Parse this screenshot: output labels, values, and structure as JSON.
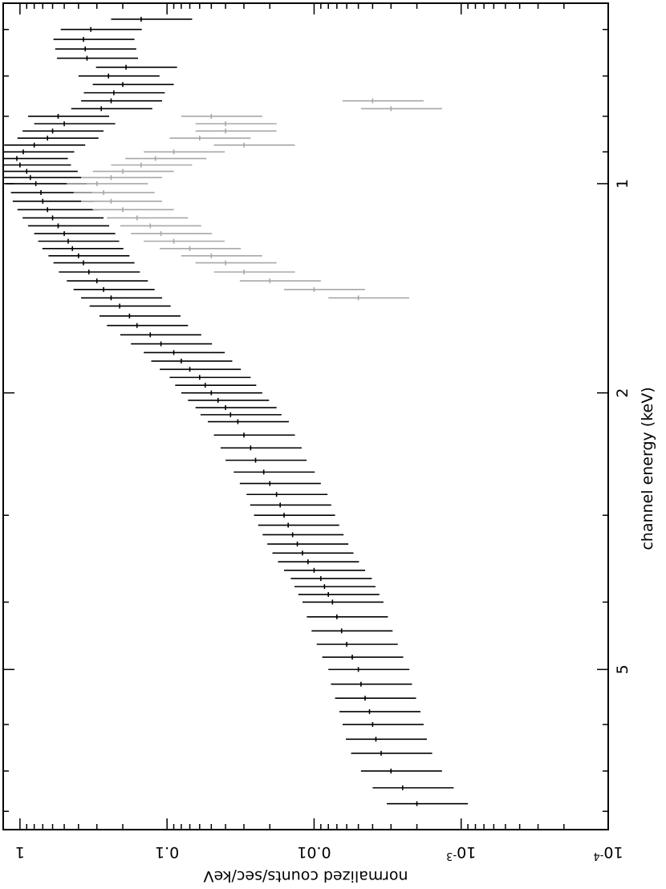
{
  "chart_data": {
    "type": "scatter",
    "orientation": "rotated 90 degrees clockwise (energy axis runs top-to-bottom)",
    "title": "",
    "xlabel": "channel energy (keV)",
    "ylabel": "normalized counts/sec/keV",
    "xscale": "log",
    "yscale": "log",
    "xlim": [
      0.55,
      8.5
    ],
    "ylim": [
      0.0001,
      1.3
    ],
    "x_major_ticks": [
      "1",
      "2",
      "5"
    ],
    "y_tick_labels": [
      "1",
      "0.1",
      "0.01",
      "10^-3",
      "10^-4"
    ],
    "y_tick_values": [
      1,
      0.1,
      0.01,
      0.001,
      0.0001
    ],
    "series": [
      {
        "name": "black spectrum",
        "color": "#000000",
        "points": [
          [
            0.58,
            0.15
          ],
          [
            0.6,
            0.33
          ],
          [
            0.62,
            0.37
          ],
          [
            0.64,
            0.36
          ],
          [
            0.66,
            0.35
          ],
          [
            0.68,
            0.19
          ],
          [
            0.7,
            0.25
          ],
          [
            0.72,
            0.2
          ],
          [
            0.74,
            0.23
          ],
          [
            0.76,
            0.24
          ],
          [
            0.78,
            0.28
          ],
          [
            0.8,
            0.55
          ],
          [
            0.82,
            0.5
          ],
          [
            0.84,
            0.6
          ],
          [
            0.86,
            0.65
          ],
          [
            0.88,
            0.8
          ],
          [
            0.9,
            0.95
          ],
          [
            0.92,
            1.05
          ],
          [
            0.94,
            1.0
          ],
          [
            0.96,
            0.9
          ],
          [
            0.98,
            0.85
          ],
          [
            1.0,
            0.78
          ],
          [
            1.03,
            0.72
          ],
          [
            1.06,
            0.7
          ],
          [
            1.09,
            0.65
          ],
          [
            1.12,
            0.6
          ],
          [
            1.15,
            0.55
          ],
          [
            1.18,
            0.5
          ],
          [
            1.21,
            0.47
          ],
          [
            1.24,
            0.44
          ],
          [
            1.27,
            0.4
          ],
          [
            1.3,
            0.37
          ],
          [
            1.34,
            0.34
          ],
          [
            1.38,
            0.3
          ],
          [
            1.42,
            0.27
          ],
          [
            1.46,
            0.24
          ],
          [
            1.5,
            0.21
          ],
          [
            1.55,
            0.18
          ],
          [
            1.6,
            0.16
          ],
          [
            1.65,
            0.13
          ],
          [
            1.7,
            0.11
          ],
          [
            1.75,
            0.09
          ],
          [
            1.8,
            0.08
          ],
          [
            1.85,
            0.07
          ],
          [
            1.9,
            0.06
          ],
          [
            1.95,
            0.055
          ],
          [
            2.0,
            0.05
          ],
          [
            2.05,
            0.045
          ],
          [
            2.1,
            0.04
          ],
          [
            2.15,
            0.037
          ],
          [
            2.2,
            0.033
          ],
          [
            2.3,
            0.03
          ],
          [
            2.4,
            0.027
          ],
          [
            2.5,
            0.025
          ],
          [
            2.6,
            0.022
          ],
          [
            2.7,
            0.02
          ],
          [
            2.8,
            0.018
          ],
          [
            2.9,
            0.017
          ],
          [
            3.0,
            0.016
          ],
          [
            3.1,
            0.015
          ],
          [
            3.2,
            0.014
          ],
          [
            3.3,
            0.013
          ],
          [
            3.4,
            0.012
          ],
          [
            3.5,
            0.011
          ],
          [
            3.6,
            0.01
          ],
          [
            3.7,
            0.009
          ],
          [
            3.8,
            0.0085
          ],
          [
            3.9,
            0.008
          ],
          [
            4.0,
            0.0075
          ],
          [
            4.2,
            0.007
          ],
          [
            4.4,
            0.0065
          ],
          [
            4.6,
            0.006
          ],
          [
            4.8,
            0.0055
          ],
          [
            5.0,
            0.005
          ],
          [
            5.25,
            0.0048
          ],
          [
            5.5,
            0.0045
          ],
          [
            5.75,
            0.0042
          ],
          [
            6.0,
            0.004
          ],
          [
            6.3,
            0.0038
          ],
          [
            6.6,
            0.0035
          ],
          [
            7.0,
            0.003
          ],
          [
            7.4,
            0.0025
          ],
          [
            7.8,
            0.002
          ]
        ]
      },
      {
        "name": "grey spectrum",
        "color": "#a8a8a8",
        "points": [
          [
            0.76,
            0.004
          ],
          [
            0.78,
            0.003
          ],
          [
            0.8,
            0.05
          ],
          [
            0.82,
            0.04
          ],
          [
            0.84,
            0.04
          ],
          [
            0.86,
            0.06
          ],
          [
            0.88,
            0.03
          ],
          [
            0.9,
            0.09
          ],
          [
            0.92,
            0.12
          ],
          [
            0.94,
            0.15
          ],
          [
            0.96,
            0.2
          ],
          [
            0.98,
            0.24
          ],
          [
            1.0,
            0.3
          ],
          [
            1.03,
            0.27
          ],
          [
            1.06,
            0.24
          ],
          [
            1.09,
            0.2
          ],
          [
            1.12,
            0.16
          ],
          [
            1.15,
            0.13
          ],
          [
            1.18,
            0.11
          ],
          [
            1.21,
            0.09
          ],
          [
            1.24,
            0.07
          ],
          [
            1.27,
            0.05
          ],
          [
            1.3,
            0.04
          ],
          [
            1.34,
            0.03
          ],
          [
            1.38,
            0.02
          ],
          [
            1.42,
            0.01
          ],
          [
            1.46,
            0.005
          ]
        ]
      }
    ]
  }
}
